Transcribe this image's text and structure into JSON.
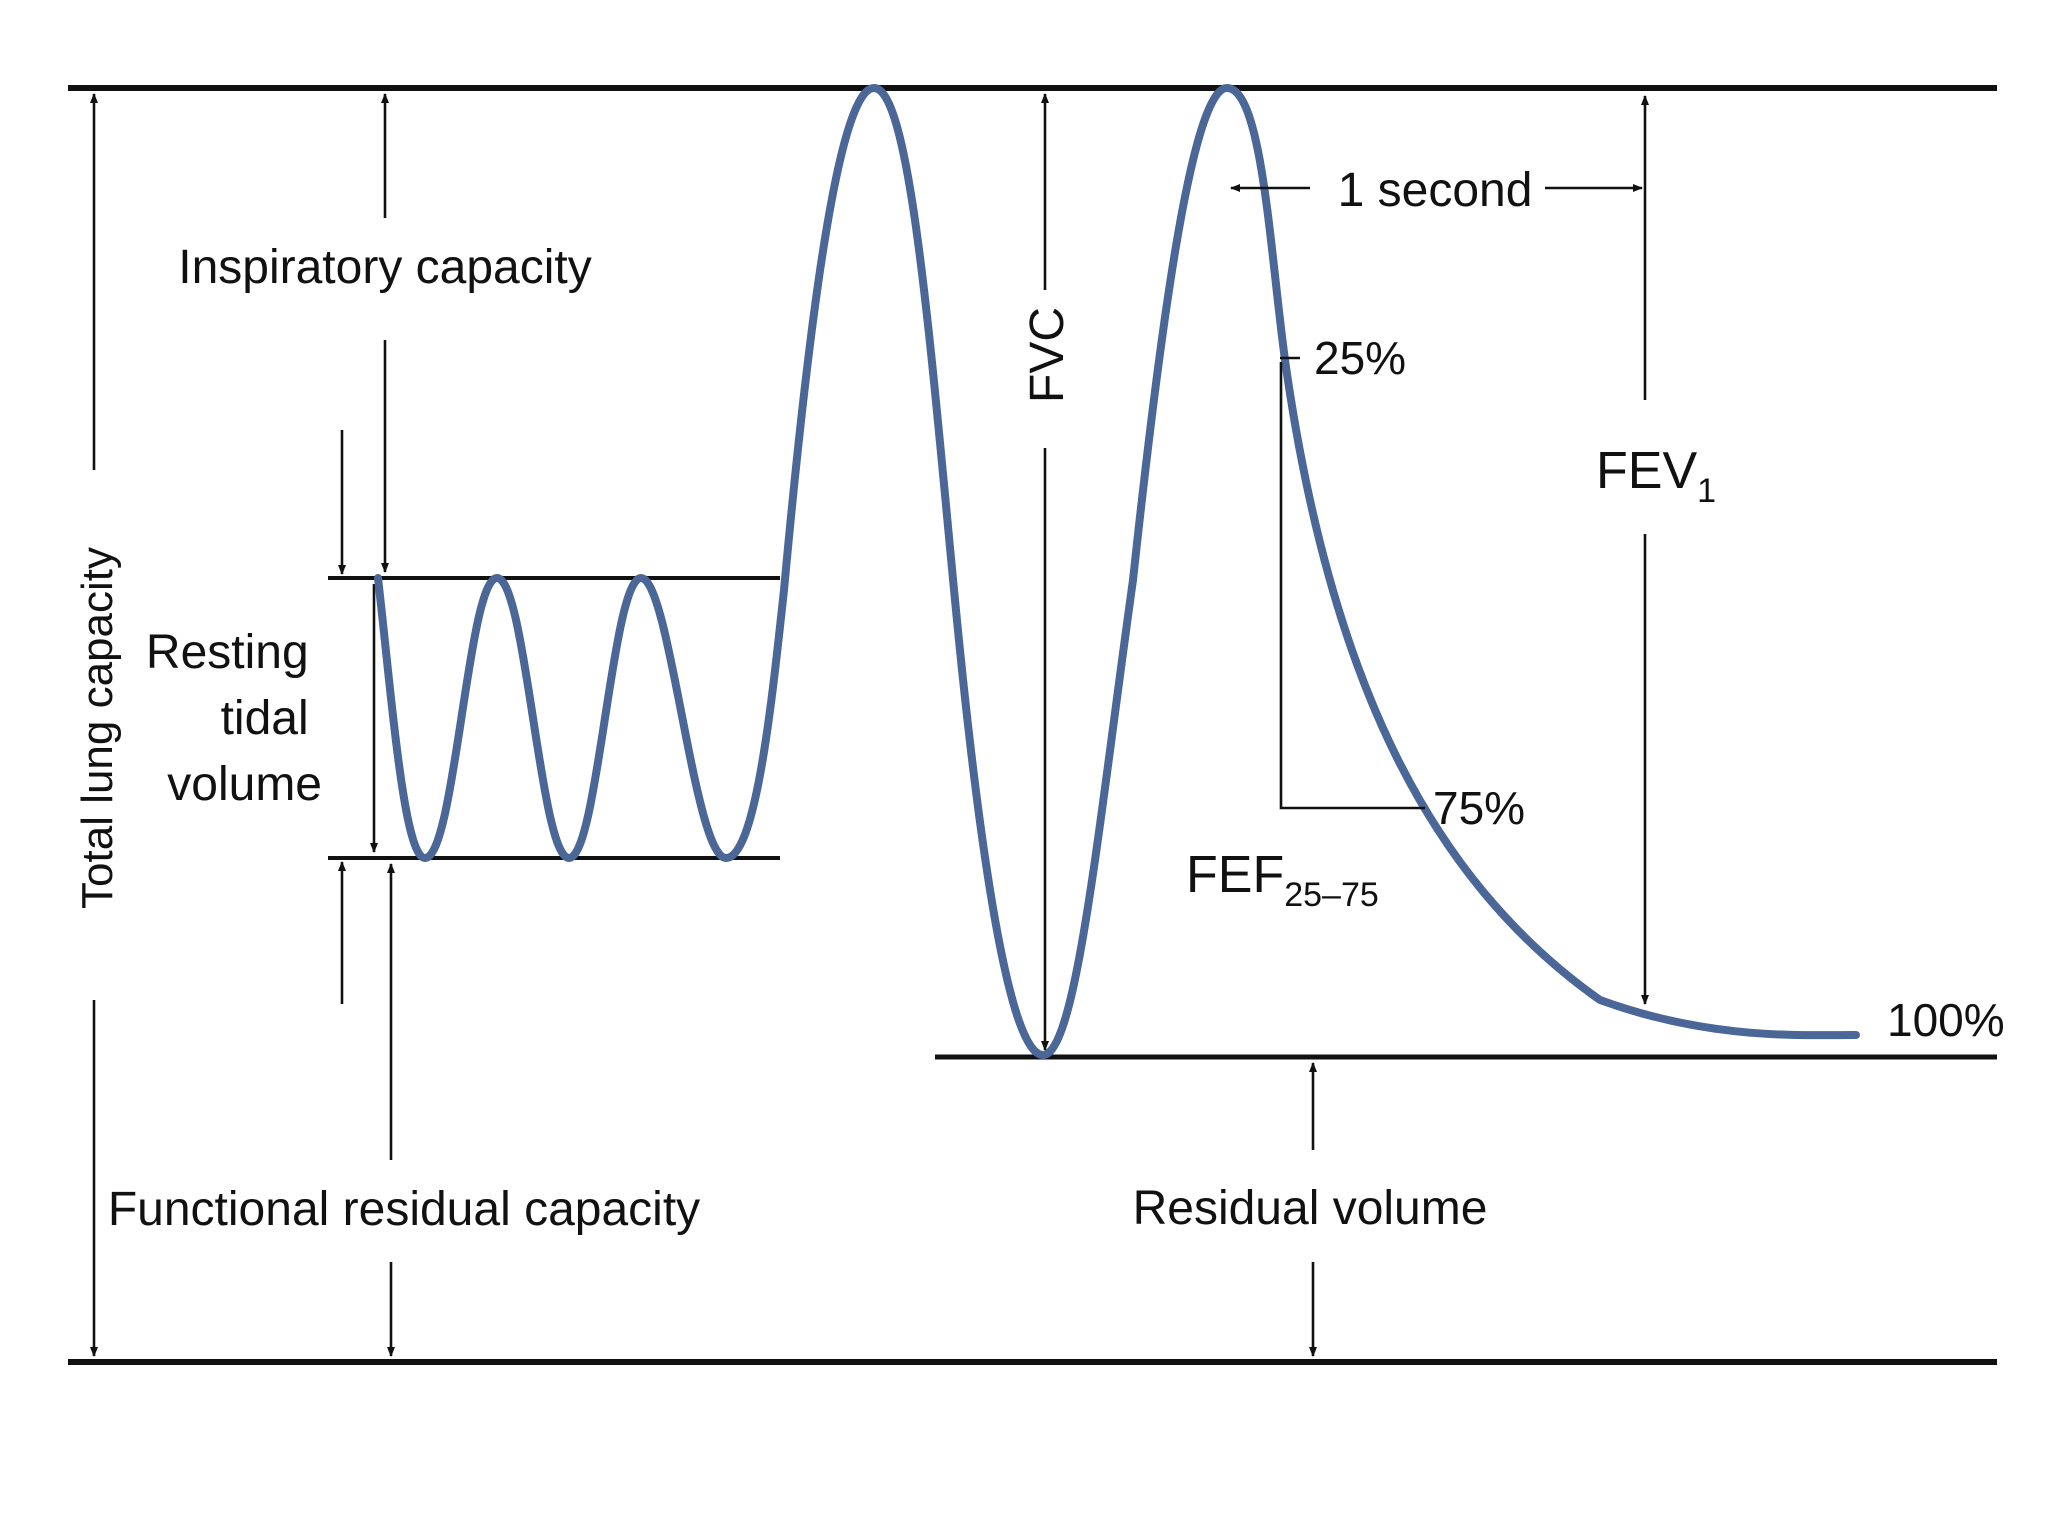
{
  "labels": {
    "total_lung_capacity": "Total lung capacity",
    "inspiratory_capacity": "Inspiratory capacity",
    "resting_tidal_volume": [
      "Resting",
      "tidal",
      "volume"
    ],
    "functional_residual_capacity": "Functional residual capacity",
    "fvc": "FVC",
    "one_second": "1 second",
    "pct_25": "25%",
    "pct_75": "75%",
    "pct_100": "100%",
    "fev_main": "FEV",
    "fev_sub": "1",
    "fef_main": "FEF",
    "fef_sub": "25–75",
    "residual_volume": "Residual volume"
  },
  "colors": {
    "curve": "#4a6797",
    "lines": "#111111",
    "background": "#ffffff"
  }
}
